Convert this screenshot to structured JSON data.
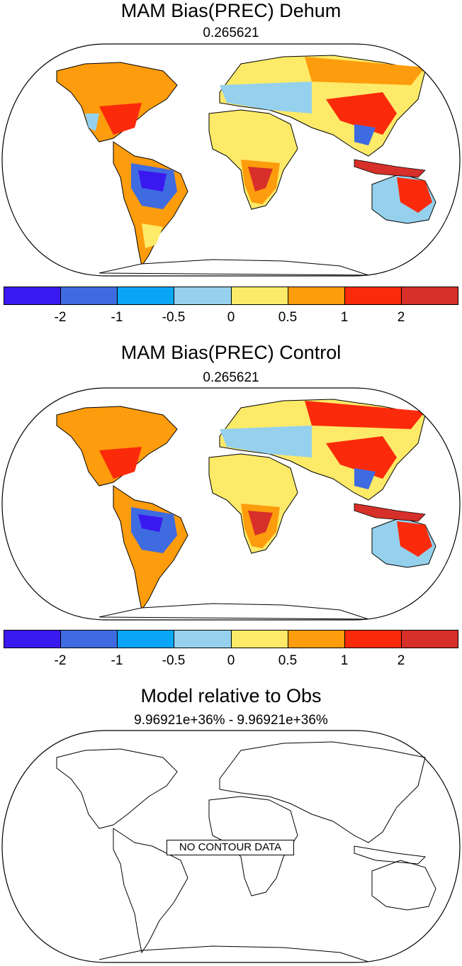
{
  "panels": [
    {
      "title": "MAM Bias(PREC) Dehum",
      "subtitle": "0.265621"
    },
    {
      "title": "MAM Bias(PREC) Control",
      "subtitle": "0.265621"
    },
    {
      "title": "Model relative to Obs",
      "subtitle": "9.96921e+36% - 9.96921e+36%",
      "message": "NO CONTOUR DATA"
    }
  ],
  "colorbar": {
    "colors": [
      "#3a18f0",
      "#3f6be0",
      "#0aa6f5",
      "#95d1ed",
      "#fdea68",
      "#fd9c0c",
      "#fb2a0a",
      "#d72f29"
    ],
    "labels": [
      "-2",
      "-1",
      "-0.5",
      "0",
      "0.5",
      "1",
      "2"
    ]
  },
  "map_colors": {
    "land_fill": "#fdea68",
    "ocean": "#ffffff",
    "outline": "#000000"
  }
}
